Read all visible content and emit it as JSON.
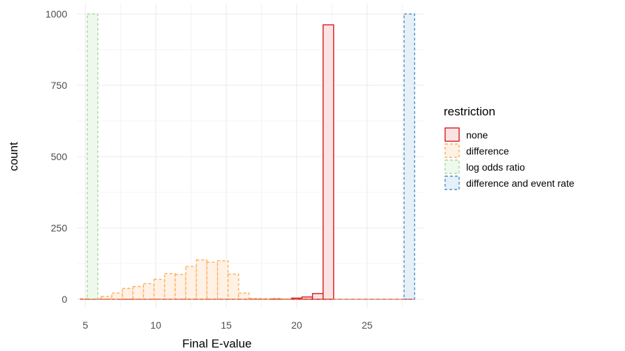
{
  "chart_data": {
    "type": "bar",
    "subtype": "histogram",
    "xlabel": "Final E-value",
    "ylabel": "count",
    "xlim": [
      4.4,
      29.0
    ],
    "ylim": [
      0,
      1000
    ],
    "x_ticks": [
      5,
      10,
      15,
      20,
      25
    ],
    "y_ticks": [
      0,
      250,
      500,
      750,
      1000
    ],
    "grid": true,
    "bin_width": 0.75,
    "legend": {
      "title": "restriction",
      "placement": "right"
    },
    "series": [
      {
        "name": "none",
        "stroke": "#d7191c",
        "fill": "#fbe3e4",
        "dashed": false,
        "bins": [
          {
            "x": 8.0,
            "count": 6
          },
          {
            "x": 18.5,
            "count": 2
          },
          {
            "x": 20.0,
            "count": 4
          },
          {
            "x": 20.75,
            "count": 8
          },
          {
            "x": 21.5,
            "count": 20
          },
          {
            "x": 22.25,
            "count": 962
          }
        ]
      },
      {
        "name": "difference",
        "stroke": "#fdae61",
        "fill": "#fff1e3",
        "dashed": true,
        "bins": [
          {
            "x": 5.0,
            "count": 2
          },
          {
            "x": 5.75,
            "count": 4
          },
          {
            "x": 6.5,
            "count": 10
          },
          {
            "x": 7.25,
            "count": 22
          },
          {
            "x": 8.0,
            "count": 38
          },
          {
            "x": 8.75,
            "count": 45
          },
          {
            "x": 9.5,
            "count": 55
          },
          {
            "x": 10.25,
            "count": 70
          },
          {
            "x": 11.0,
            "count": 90
          },
          {
            "x": 11.75,
            "count": 87
          },
          {
            "x": 12.5,
            "count": 115
          },
          {
            "x": 13.25,
            "count": 138
          },
          {
            "x": 14.0,
            "count": 130
          },
          {
            "x": 14.75,
            "count": 135
          },
          {
            "x": 15.5,
            "count": 88
          },
          {
            "x": 16.25,
            "count": 22
          },
          {
            "x": 17.0,
            "count": 3
          },
          {
            "x": 17.75,
            "count": 2
          },
          {
            "x": 18.5,
            "count": 2
          },
          {
            "x": 19.25,
            "count": 1
          }
        ]
      },
      {
        "name": "log odds ratio",
        "stroke": "#a6dba0",
        "fill": "#eef8ec",
        "dashed": true,
        "bins": [
          {
            "x": 5.5,
            "count": 1000
          }
        ]
      },
      {
        "name": "difference and event rate",
        "stroke": "#4a90c8",
        "fill": "#e6f0f8",
        "dashed": true,
        "bins": [
          {
            "x": 28.0,
            "count": 1000
          }
        ]
      }
    ]
  }
}
